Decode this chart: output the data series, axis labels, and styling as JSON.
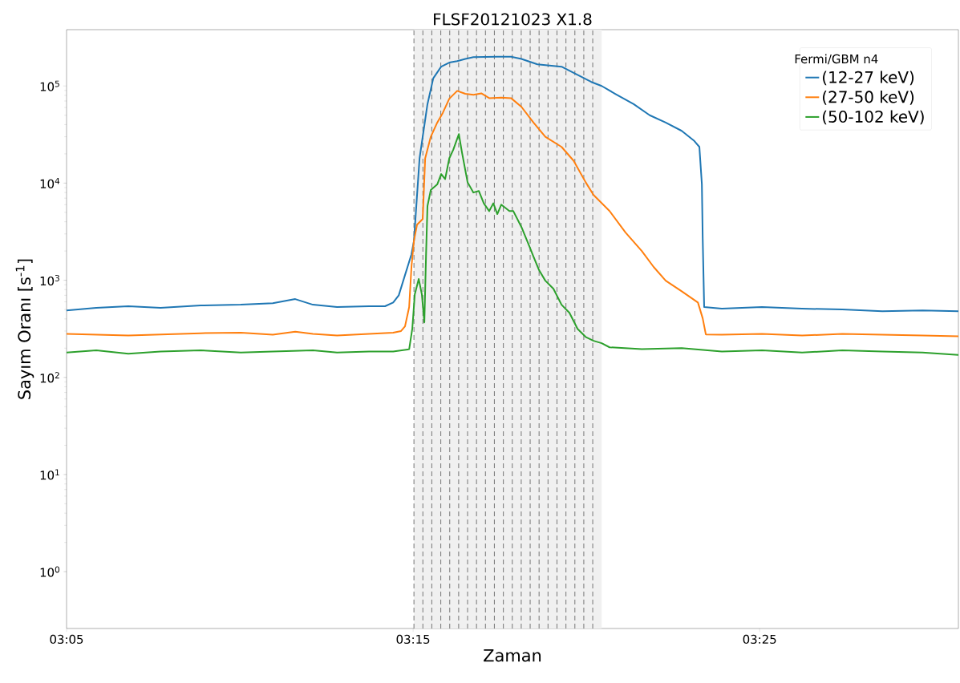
{
  "chart_data": {
    "type": "line",
    "title": "FLSF20121023 X1.8",
    "xlabel": "Zaman",
    "ylabel": "Sayım Oranı [s$^{-1}$]",
    "legend_title": "Fermi/GBM n4",
    "log": true,
    "legend": "top right",
    "line_style": "solid",
    "xlim": [
      3.0833,
      3.5123
    ],
    "ylim": [
      0.26,
      380000
    ],
    "xticks": [
      {
        "value": 3.0833,
        "label": "03:05"
      },
      {
        "value": 3.25,
        "label": "03:15"
      },
      {
        "value": 3.4167,
        "label": "03:25"
      }
    ],
    "yticks": [
      {
        "value": 1,
        "label": "10$^{0}$"
      },
      {
        "value": 10,
        "label": "10$^{1}$"
      },
      {
        "value": 100,
        "label": "10$^{2}$"
      },
      {
        "value": 1000,
        "label": "10$^{3}$"
      },
      {
        "value": 10000,
        "label": "10$^{4}$"
      },
      {
        "value": 100000,
        "label": "10$^{5}$"
      }
    ],
    "bands": [
      {
        "axis": "x",
        "from": 3.2504,
        "to": 3.3407,
        "color": "#f0f0f0"
      }
    ],
    "ref_lines": [
      {
        "axis": "x",
        "value": 3.2504,
        "color": "#808080",
        "line_style": "dashed"
      },
      {
        "axis": "x",
        "value": 3.2547,
        "color": "#808080",
        "line_style": "dashed"
      },
      {
        "axis": "x",
        "value": 3.259,
        "color": "#808080",
        "line_style": "dashed"
      },
      {
        "axis": "x",
        "value": 3.2633,
        "color": "#808080",
        "line_style": "dashed"
      },
      {
        "axis": "x",
        "value": 3.2676,
        "color": "#808080",
        "line_style": "dashed"
      },
      {
        "axis": "x",
        "value": 3.2719,
        "color": "#808080",
        "line_style": "dashed"
      },
      {
        "axis": "x",
        "value": 3.2762,
        "color": "#808080",
        "line_style": "dashed"
      },
      {
        "axis": "x",
        "value": 3.2805,
        "color": "#808080",
        "line_style": "dashed"
      },
      {
        "axis": "x",
        "value": 3.2848,
        "color": "#808080",
        "line_style": "dashed"
      },
      {
        "axis": "x",
        "value": 3.2891,
        "color": "#808080",
        "line_style": "dashed"
      },
      {
        "axis": "x",
        "value": 3.2934,
        "color": "#808080",
        "line_style": "dashed"
      },
      {
        "axis": "x",
        "value": 3.2977,
        "color": "#808080",
        "line_style": "dashed"
      },
      {
        "axis": "x",
        "value": 3.302,
        "color": "#808080",
        "line_style": "dashed"
      },
      {
        "axis": "x",
        "value": 3.3063,
        "color": "#808080",
        "line_style": "dashed"
      },
      {
        "axis": "x",
        "value": 3.3106,
        "color": "#808080",
        "line_style": "dashed"
      },
      {
        "axis": "x",
        "value": 3.3149,
        "color": "#808080",
        "line_style": "dashed"
      },
      {
        "axis": "x",
        "value": 3.3192,
        "color": "#808080",
        "line_style": "dashed"
      },
      {
        "axis": "x",
        "value": 3.3235,
        "color": "#808080",
        "line_style": "dashed"
      },
      {
        "axis": "x",
        "value": 3.3278,
        "color": "#808080",
        "line_style": "dashed"
      },
      {
        "axis": "x",
        "value": 3.3321,
        "color": "#808080",
        "line_style": "dashed"
      },
      {
        "axis": "x",
        "value": 3.3364,
        "color": "#808080",
        "line_style": "dashed"
      }
    ],
    "series": [
      {
        "name": "(12-27 keV)",
        "color": "#1f77b4",
        "x": [
          3.0833,
          3.0976,
          3.113,
          3.1285,
          3.1478,
          3.1671,
          3.1825,
          3.1933,
          3.2018,
          3.2134,
          3.2288,
          3.2365,
          3.2404,
          3.2431,
          3.2461,
          3.2492,
          3.2504,
          3.2531,
          3.2569,
          3.2597,
          3.2635,
          3.2674,
          3.2712,
          3.2751,
          3.279,
          3.2905,
          3.2971,
          3.3021,
          3.3098,
          3.3214,
          3.3291,
          3.3357,
          3.3407,
          3.3472,
          3.3561,
          3.3638,
          3.3715,
          3.3792,
          3.385,
          3.3877,
          3.3889,
          3.3893,
          3.39,
          3.3985,
          3.4178,
          3.4371,
          3.4564,
          3.4757,
          3.495,
          3.5123
        ],
        "values": [
          490,
          520,
          540,
          520,
          550,
          560,
          580,
          640,
          560,
          530,
          540,
          540,
          590,
          700,
          1130,
          1850,
          2550,
          18000,
          65000,
          120000,
          158000,
          174000,
          180000,
          190000,
          198000,
          200000,
          200000,
          190000,
          167000,
          158000,
          130000,
          110000,
          100000,
          83000,
          65000,
          50000,
          42000,
          34500,
          27500,
          23600,
          9700,
          2700,
          530,
          510,
          530,
          510,
          500,
          480,
          490,
          480
        ]
      },
      {
        "name": "(27-50 keV)",
        "color": "#ff7f0e",
        "x": [
          3.0833,
          3.113,
          3.1478,
          3.1671,
          3.1825,
          3.1933,
          3.2018,
          3.2134,
          3.2288,
          3.2404,
          3.2442,
          3.2461,
          3.2481,
          3.2492,
          3.2504,
          3.2519,
          3.2546,
          3.2558,
          3.2585,
          3.2616,
          3.2643,
          3.2674,
          3.2712,
          3.2751,
          3.279,
          3.2828,
          3.2866,
          3.2924,
          3.2971,
          3.3021,
          3.3079,
          3.3136,
          3.3214,
          3.3272,
          3.333,
          3.3368,
          3.3445,
          3.3522,
          3.36,
          3.3657,
          3.3715,
          3.3792,
          3.387,
          3.3893,
          3.3908,
          3.3985,
          3.4178,
          3.4371,
          3.4564,
          3.4757,
          3.495,
          3.5123
        ],
        "values": [
          280,
          270,
          285,
          288,
          275,
          295,
          280,
          270,
          280,
          288,
          300,
          335,
          530,
          1370,
          2560,
          3740,
          4270,
          18000,
          30000,
          42000,
          53000,
          74000,
          89000,
          83000,
          81000,
          84000,
          75000,
          76000,
          75000,
          61000,
          42000,
          30000,
          23600,
          17000,
          10200,
          7550,
          5160,
          3100,
          2000,
          1370,
          990,
          770,
          590,
          405,
          277,
          275,
          280,
          270,
          280,
          275,
          270,
          265
        ]
      },
      {
        "name": "(50-102 keV)",
        "color": "#2ca02c",
        "x": [
          3.0833,
          3.0976,
          3.113,
          3.1285,
          3.1478,
          3.1671,
          3.1825,
          3.2018,
          3.2134,
          3.2288,
          3.2404,
          3.2481,
          3.2496,
          3.2508,
          3.2527,
          3.2542,
          3.2554,
          3.2562,
          3.2569,
          3.2585,
          3.2616,
          3.2635,
          3.2654,
          3.2674,
          3.2693,
          3.272,
          3.2735,
          3.2762,
          3.279,
          3.2816,
          3.284,
          3.2866,
          3.2886,
          3.2905,
          3.2924,
          3.2963,
          3.2982,
          3.3021,
          3.3059,
          3.3079,
          3.3106,
          3.3136,
          3.3175,
          3.3214,
          3.3252,
          3.3291,
          3.333,
          3.3368,
          3.3407,
          3.3445,
          3.36,
          3.3792,
          3.3985,
          3.4178,
          3.4371,
          3.4564,
          3.4757,
          3.495,
          3.5123
        ],
        "values": [
          180,
          190,
          175,
          185,
          190,
          180,
          185,
          190,
          180,
          185,
          185,
          195,
          316,
          716,
          1030,
          716,
          368,
          1750,
          5800,
          8500,
          9700,
          12400,
          11000,
          18000,
          22000,
          32000,
          20700,
          10200,
          8000,
          8300,
          6200,
          5150,
          6200,
          4800,
          6000,
          5150,
          5150,
          3530,
          2240,
          1750,
          1270,
          990,
          817,
          560,
          462,
          316,
          261,
          238,
          225,
          204,
          195,
          200,
          185,
          190,
          180,
          190,
          185,
          180,
          170
        ]
      }
    ]
  }
}
